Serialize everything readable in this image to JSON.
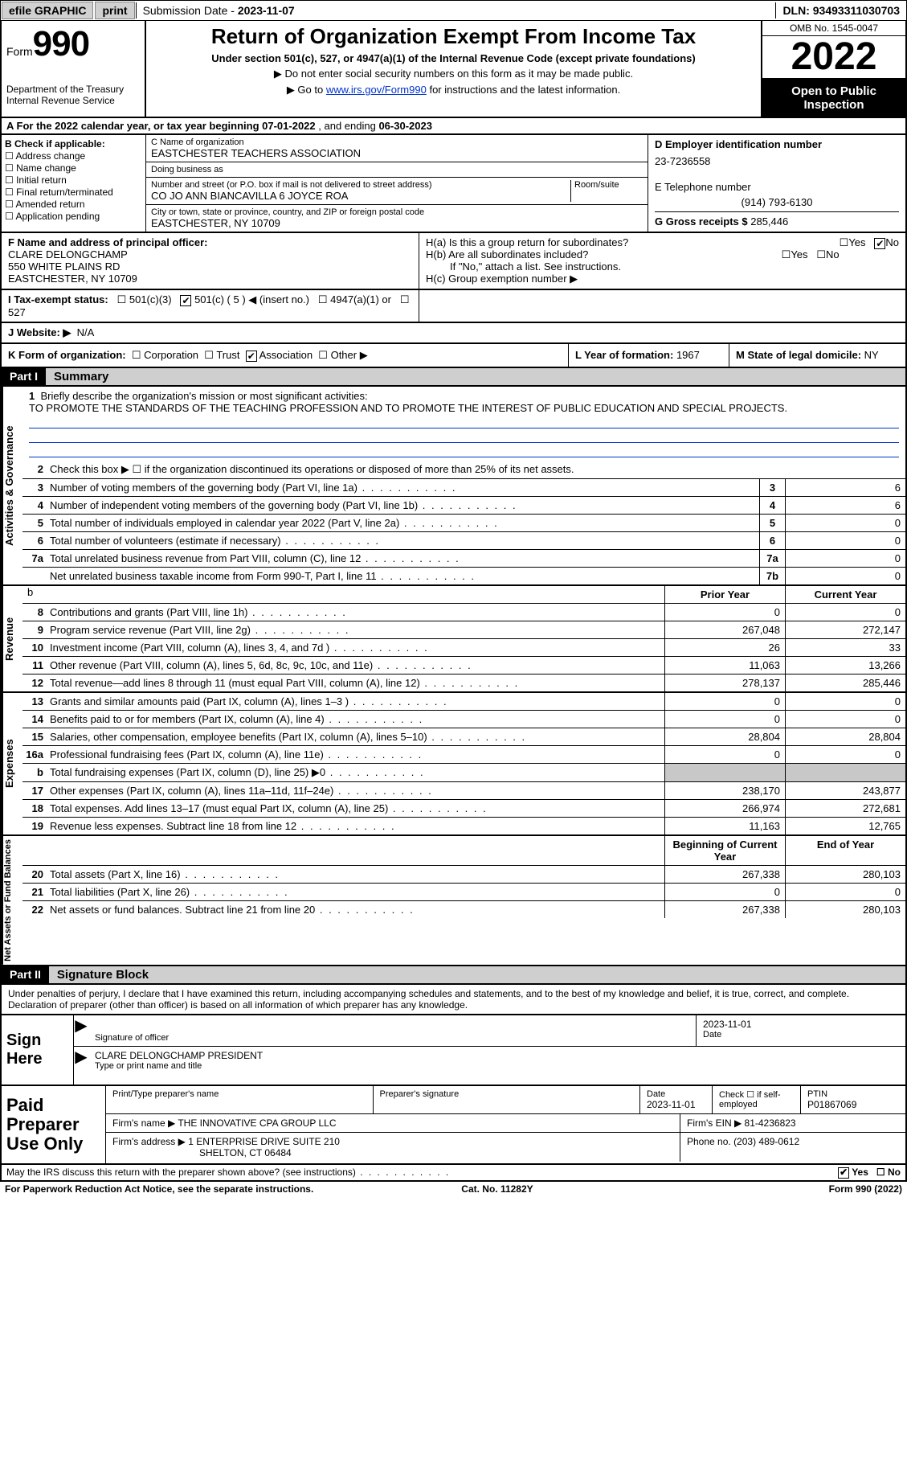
{
  "topbar": {
    "efile": "efile GRAPHIC",
    "print": "print",
    "submission_label": "Submission Date - ",
    "submission_date": "2023-11-07",
    "dln_label": "DLN: ",
    "dln": "93493311030703"
  },
  "header": {
    "form_word": "Form",
    "form_num": "990",
    "dept": "Department of the Treasury\nInternal Revenue Service",
    "title": "Return of Organization Exempt From Income Tax",
    "subtitle": "Under section 501(c), 527, or 4947(a)(1) of the Internal Revenue Code (except private foundations)",
    "note1": "▶ Do not enter social security numbers on this form as it may be made public.",
    "note2_pre": "▶ Go to ",
    "note2_link": "www.irs.gov/Form990",
    "note2_post": " for instructions and the latest information.",
    "omb": "OMB No. 1545-0047",
    "year": "2022",
    "inspect": "Open to Public Inspection"
  },
  "row_a": {
    "text_pre": "A For the 2022 calendar year, or tax year beginning ",
    "begin": "07-01-2022",
    "mid": " , and ending ",
    "end": "06-30-2023"
  },
  "col_b": {
    "label": "B Check if applicable:",
    "items": [
      "Address change",
      "Name change",
      "Initial return",
      "Final return/terminated",
      "Amended return",
      "Application pending"
    ]
  },
  "c": {
    "name_lbl": "C Name of organization",
    "name": "EASTCHESTER TEACHERS ASSOCIATION",
    "dba_lbl": "Doing business as",
    "dba": "",
    "addr_lbl": "Number and street (or P.O. box if mail is not delivered to street address)",
    "room_lbl": "Room/suite",
    "addr": "CO JO ANN BIANCAVILLA 6 JOYCE ROA",
    "city_lbl": "City or town, state or province, country, and ZIP or foreign postal code",
    "city": "EASTCHESTER, NY  10709"
  },
  "d": {
    "lbl": "D Employer identification number",
    "val": "23-7236558"
  },
  "e": {
    "lbl": "E Telephone number",
    "val": "(914) 793-6130"
  },
  "g": {
    "lbl": "G Gross receipts $ ",
    "val": "285,446"
  },
  "f": {
    "lbl": "F Name and address of principal officer:",
    "name": "CLARE DELONGCHAMP",
    "addr1": "550 WHITE PLAINS RD",
    "addr2": "EASTCHESTER, NY  10709"
  },
  "h": {
    "a": "H(a)  Is this a group return for subordinates?",
    "b": "H(b)  Are all subordinates included?",
    "b_note": "If \"No,\" attach a list. See instructions.",
    "c": "H(c)  Group exemption number ▶",
    "yes": "Yes",
    "no": "No"
  },
  "i": {
    "lbl": "I  Tax-exempt status:",
    "o1": "501(c)(3)",
    "o2": "501(c) ( 5 ) ◀ (insert no.)",
    "o3": "4947(a)(1) or",
    "o4": "527"
  },
  "j": {
    "lbl": "J  Website: ▶",
    "val": "N/A"
  },
  "k": {
    "lbl": "K Form of organization:",
    "o1": "Corporation",
    "o2": "Trust",
    "o3": "Association",
    "o4": "Other ▶"
  },
  "l": {
    "lbl": "L Year of formation: ",
    "val": "1967"
  },
  "m": {
    "lbl": "M State of legal domicile: ",
    "val": "NY"
  },
  "part1": {
    "tag": "Part I",
    "title": "Summary"
  },
  "mission": {
    "num": "1",
    "lbl": "Briefly describe the organization's mission or most significant activities:",
    "text": "TO PROMOTE THE STANDARDS OF THE TEACHING PROFESSION AND TO PROMOTE THE INTEREST OF PUBLIC EDUCATION AND SPECIAL PROJECTS."
  },
  "line2": {
    "num": "2",
    "txt": "Check this box ▶ ☐  if the organization discontinued its operations or disposed of more than 25% of its net assets."
  },
  "sidebars": {
    "ag": "Activities & Governance",
    "rev": "Revenue",
    "exp": "Expenses",
    "net": "Net Assets or Fund Balances"
  },
  "gov_lines": [
    {
      "n": "3",
      "t": "Number of voting members of the governing body (Part VI, line 1a)",
      "box": "3",
      "v": "6"
    },
    {
      "n": "4",
      "t": "Number of independent voting members of the governing body (Part VI, line 1b)",
      "box": "4",
      "v": "6"
    },
    {
      "n": "5",
      "t": "Total number of individuals employed in calendar year 2022 (Part V, line 2a)",
      "box": "5",
      "v": "0"
    },
    {
      "n": "6",
      "t": "Total number of volunteers (estimate if necessary)",
      "box": "6",
      "v": "0"
    },
    {
      "n": "7a",
      "t": "Total unrelated business revenue from Part VIII, column (C), line 12",
      "box": "7a",
      "v": "0"
    },
    {
      "n": "",
      "t": "Net unrelated business taxable income from Form 990-T, Part I, line 11",
      "box": "7b",
      "v": "0"
    }
  ],
  "cols": {
    "prior": "Prior Year",
    "current": "Current Year"
  },
  "rev_lines": [
    {
      "n": "8",
      "t": "Contributions and grants (Part VIII, line 1h)",
      "p": "0",
      "c": "0"
    },
    {
      "n": "9",
      "t": "Program service revenue (Part VIII, line 2g)",
      "p": "267,048",
      "c": "272,147"
    },
    {
      "n": "10",
      "t": "Investment income (Part VIII, column (A), lines 3, 4, and 7d )",
      "p": "26",
      "c": "33"
    },
    {
      "n": "11",
      "t": "Other revenue (Part VIII, column (A), lines 5, 6d, 8c, 9c, 10c, and 11e)",
      "p": "11,063",
      "c": "13,266"
    },
    {
      "n": "12",
      "t": "Total revenue—add lines 8 through 11 (must equal Part VIII, column (A), line 12)",
      "p": "278,137",
      "c": "285,446"
    }
  ],
  "exp_lines": [
    {
      "n": "13",
      "t": "Grants and similar amounts paid (Part IX, column (A), lines 1–3 )",
      "p": "0",
      "c": "0"
    },
    {
      "n": "14",
      "t": "Benefits paid to or for members (Part IX, column (A), line 4)",
      "p": "0",
      "c": "0"
    },
    {
      "n": "15",
      "t": "Salaries, other compensation, employee benefits (Part IX, column (A), lines 5–10)",
      "p": "28,804",
      "c": "28,804"
    },
    {
      "n": "16a",
      "t": "Professional fundraising fees (Part IX, column (A), line 11e)",
      "p": "0",
      "c": "0"
    },
    {
      "n": "b",
      "t": "Total fundraising expenses (Part IX, column (D), line 25) ▶0",
      "p": "",
      "c": "",
      "shade": true
    },
    {
      "n": "17",
      "t": "Other expenses (Part IX, column (A), lines 11a–11d, 11f–24e)",
      "p": "238,170",
      "c": "243,877"
    },
    {
      "n": "18",
      "t": "Total expenses. Add lines 13–17 (must equal Part IX, column (A), line 25)",
      "p": "266,974",
      "c": "272,681"
    },
    {
      "n": "19",
      "t": "Revenue less expenses. Subtract line 18 from line 12",
      "p": "11,163",
      "c": "12,765"
    }
  ],
  "net_cols": {
    "begin": "Beginning of Current Year",
    "end": "End of Year"
  },
  "net_lines": [
    {
      "n": "20",
      "t": "Total assets (Part X, line 16)",
      "p": "267,338",
      "c": "280,103"
    },
    {
      "n": "21",
      "t": "Total liabilities (Part X, line 26)",
      "p": "0",
      "c": "0"
    },
    {
      "n": "22",
      "t": "Net assets or fund balances. Subtract line 21 from line 20",
      "p": "267,338",
      "c": "280,103"
    }
  ],
  "part2": {
    "tag": "Part II",
    "title": "Signature Block"
  },
  "penalties": "Under penalties of perjury, I declare that I have examined this return, including accompanying schedules and statements, and to the best of my knowledge and belief, it is true, correct, and complete. Declaration of preparer (other than officer) is based on all information of which preparer has any knowledge.",
  "sign": {
    "label": "Sign Here",
    "sig_lbl": "Signature of officer",
    "date": "2023-11-01",
    "date_lbl": "Date",
    "name": "CLARE DELONGCHAMP  PRESIDENT",
    "name_lbl": "Type or print name and title"
  },
  "prep": {
    "label": "Paid Preparer Use Only",
    "pname_lbl": "Print/Type preparer's name",
    "psig_lbl": "Preparer's signature",
    "pdate_lbl": "Date",
    "pdate": "2023-11-01",
    "self_lbl": "Check ☐ if self-employed",
    "ptin_lbl": "PTIN",
    "ptin": "P01867069",
    "firm_lbl": "Firm's name    ▶",
    "firm": "THE INNOVATIVE CPA GROUP LLC",
    "ein_lbl": "Firm's EIN ▶",
    "ein": "81-4236823",
    "addr_lbl": "Firm's address ▶",
    "addr1": "1 ENTERPRISE DRIVE SUITE 210",
    "addr2": "SHELTON, CT  06484",
    "phone_lbl": "Phone no. ",
    "phone": "(203) 489-0612"
  },
  "discuss": {
    "q": "May the IRS discuss this return with the preparer shown above? (see instructions)",
    "yes": "Yes",
    "no": "No"
  },
  "footer": {
    "pra": "For Paperwork Reduction Act Notice, see the separate instructions.",
    "cat": "Cat. No. 11282Y",
    "form": "Form 990 (2022)"
  },
  "style": {
    "link_color": "#0033cc",
    "shade_color": "#c8c8c8",
    "header_bg": "#000000"
  }
}
